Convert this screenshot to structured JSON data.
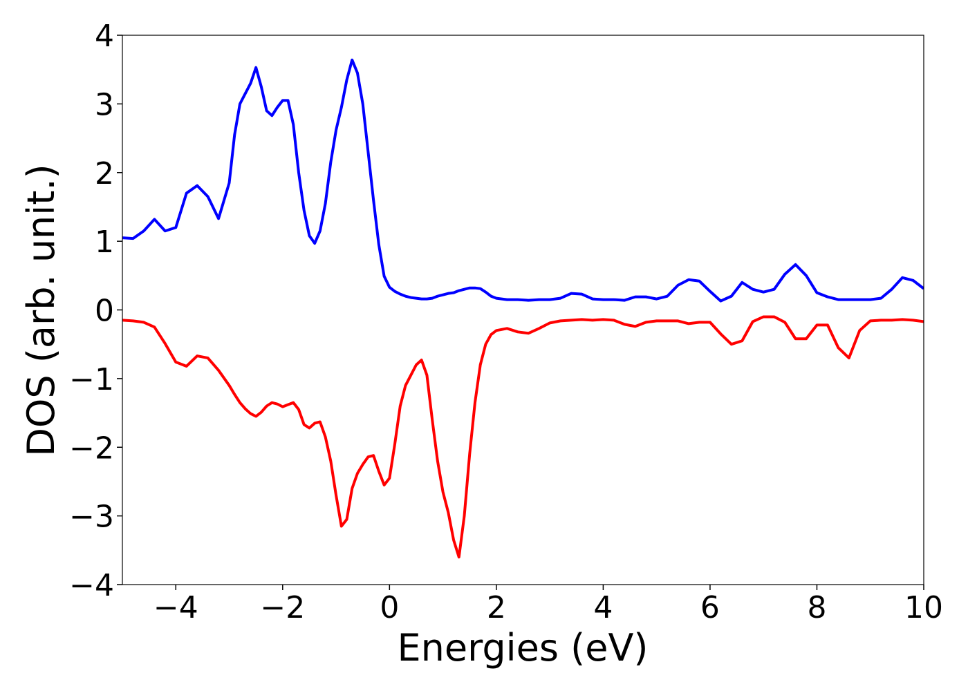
{
  "chart_data": {
    "type": "line",
    "xlabel": "Energies (eV)",
    "ylabel": "DOS (arb. unit.)",
    "x": [
      -5,
      -4.8,
      -4.6,
      -4.4,
      -4.2,
      -4,
      -3.8,
      -3.6,
      -3.4,
      -3.2,
      -3,
      -2.9,
      -2.8,
      -2.7,
      -2.6,
      -2.5,
      -2.4,
      -2.3,
      -2.2,
      -2.1,
      -2,
      -1.9,
      -1.8,
      -1.7,
      -1.6,
      -1.5,
      -1.4,
      -1.3,
      -1.2,
      -1.1,
      -1,
      -0.9,
      -0.8,
      -0.7,
      -0.6,
      -0.5,
      -0.4,
      -0.3,
      -0.2,
      -0.1,
      0,
      0.1,
      0.2,
      0.3,
      0.4,
      0.5,
      0.6,
      0.7,
      0.8,
      0.9,
      1,
      1.1,
      1.2,
      1.3,
      1.4,
      1.5,
      1.6,
      1.7,
      1.8,
      1.9,
      2,
      2.2,
      2.4,
      2.6,
      2.8,
      3,
      3.2,
      3.4,
      3.6,
      3.8,
      4,
      4.2,
      4.4,
      4.6,
      4.8,
      5,
      5.2,
      5.4,
      5.6,
      5.8,
      6,
      6.2,
      6.4,
      6.6,
      6.8,
      7,
      7.2,
      7.4,
      7.6,
      7.8,
      8,
      8.2,
      8.4,
      8.6,
      8.8,
      9,
      9.2,
      9.4,
      9.6,
      9.8,
      10
    ],
    "series": [
      {
        "color": "#0000ff",
        "values": [
          1.05,
          1.04,
          1.15,
          1.32,
          1.15,
          1.2,
          1.7,
          1.81,
          1.65,
          1.33,
          1.85,
          2.55,
          3.0,
          3.15,
          3.3,
          3.53,
          3.25,
          2.9,
          2.83,
          2.95,
          3.05,
          3.05,
          2.7,
          2.0,
          1.45,
          1.08,
          0.97,
          1.15,
          1.55,
          2.15,
          2.62,
          2.95,
          3.35,
          3.64,
          3.45,
          3.0,
          2.3,
          1.6,
          0.95,
          0.49,
          0.33,
          0.27,
          0.23,
          0.2,
          0.18,
          0.17,
          0.16,
          0.16,
          0.17,
          0.2,
          0.22,
          0.24,
          0.25,
          0.28,
          0.3,
          0.32,
          0.32,
          0.31,
          0.26,
          0.2,
          0.17,
          0.15,
          0.15,
          0.14,
          0.15,
          0.15,
          0.17,
          0.24,
          0.23,
          0.16,
          0.15,
          0.15,
          0.14,
          0.19,
          0.19,
          0.16,
          0.2,
          0.36,
          0.44,
          0.42,
          0.27,
          0.13,
          0.2,
          0.4,
          0.3,
          0.26,
          0.3,
          0.52,
          0.66,
          0.5,
          0.25,
          0.19,
          0.15,
          0.15,
          0.15,
          0.15,
          0.17,
          0.3,
          0.47,
          0.43,
          0.31
        ]
      },
      {
        "color": "#ff0000",
        "values": [
          -0.15,
          -0.16,
          -0.18,
          -0.25,
          -0.49,
          -0.76,
          -0.82,
          -0.67,
          -0.7,
          -0.88,
          -1.1,
          -1.23,
          -1.35,
          -1.44,
          -1.51,
          -1.55,
          -1.49,
          -1.4,
          -1.35,
          -1.37,
          -1.41,
          -1.38,
          -1.35,
          -1.45,
          -1.67,
          -1.72,
          -1.65,
          -1.63,
          -1.85,
          -2.2,
          -2.7,
          -3.15,
          -3.05,
          -2.6,
          -2.38,
          -2.25,
          -2.14,
          -2.12,
          -2.35,
          -2.55,
          -2.45,
          -1.95,
          -1.4,
          -1.1,
          -0.95,
          -0.8,
          -0.73,
          -0.95,
          -1.6,
          -2.2,
          -2.65,
          -2.95,
          -3.35,
          -3.6,
          -3.0,
          -2.1,
          -1.35,
          -0.8,
          -0.5,
          -0.36,
          -0.3,
          -0.27,
          -0.32,
          -0.34,
          -0.27,
          -0.19,
          -0.16,
          -0.15,
          -0.14,
          -0.15,
          -0.14,
          -0.15,
          -0.21,
          -0.24,
          -0.18,
          -0.16,
          -0.16,
          -0.16,
          -0.2,
          -0.18,
          -0.18,
          -0.35,
          -0.5,
          -0.45,
          -0.17,
          -0.1,
          -0.1,
          -0.18,
          -0.42,
          -0.42,
          -0.22,
          -0.22,
          -0.55,
          -0.7,
          -0.3,
          -0.16,
          -0.15,
          -0.15,
          -0.14,
          -0.15,
          -0.17
        ]
      }
    ],
    "xlim": [
      -5,
      10
    ],
    "xticks": [
      {
        "value": -4,
        "label": "−4"
      },
      {
        "value": -2,
        "label": "−2"
      },
      0,
      2,
      4,
      6,
      8,
      10
    ],
    "ylim": [
      -4,
      4
    ],
    "yticks": [
      {
        "value": -4,
        "label": "−4"
      },
      {
        "value": -3,
        "label": "−3"
      },
      {
        "value": -2,
        "label": "−2"
      },
      {
        "value": -1,
        "label": "−1"
      },
      0,
      1,
      2,
      3,
      4
    ],
    "grid": false
  }
}
